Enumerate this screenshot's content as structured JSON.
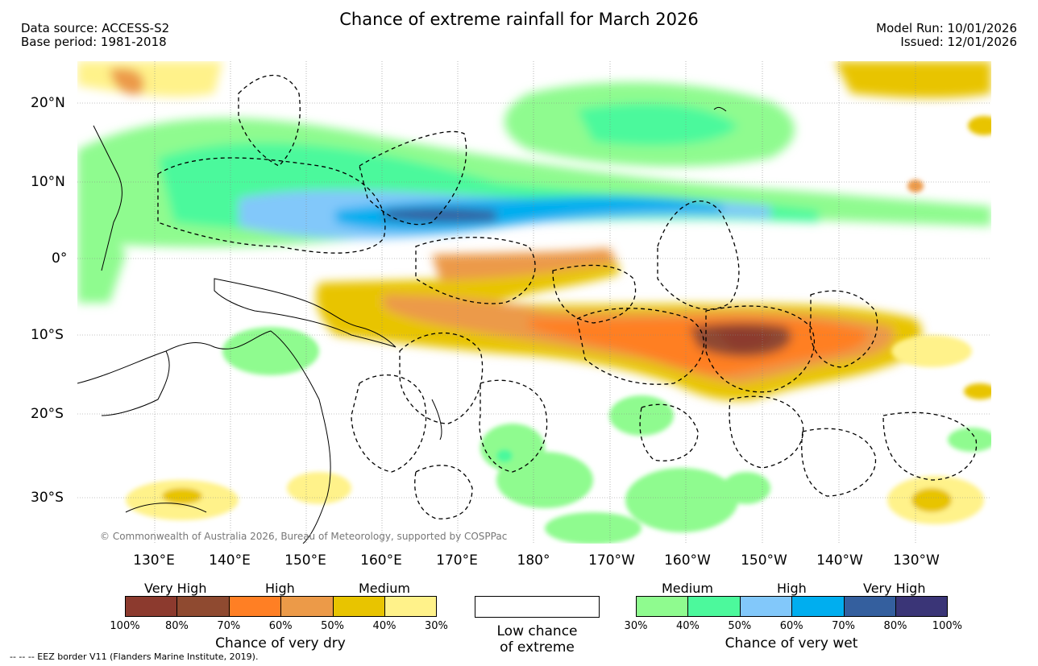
{
  "title": "Chance of extreme rainfall for March 2026",
  "source": {
    "line1": "Data source: ACCESS-S2",
    "line2": "Base period: 1981-2018"
  },
  "model": {
    "run": "Model Run: 10/01/2026",
    "issued": "Issued: 12/01/2026"
  },
  "map": {
    "lat_labels": [
      "20°N",
      "10°N",
      "0°",
      "10°S",
      "20°S",
      "30°S"
    ],
    "lon_labels": [
      "130°E",
      "140°E",
      "150°E",
      "160°E",
      "170°E",
      "180°",
      "170°W",
      "160°W",
      "150°W",
      "140°W",
      "130°W"
    ],
    "copyright": "© Commonwealth of Australia 2026, Bureau of Meteorology, supported by COSPPac"
  },
  "legend": {
    "dry": {
      "categories": [
        "Very High",
        "High",
        "Medium"
      ],
      "ticks": [
        "100%",
        "80%",
        "70%",
        "60%",
        "50%",
        "40%",
        "30%"
      ],
      "colors": [
        "#8c3a2e",
        "#8f4a30",
        "#ff7f24",
        "#ec9a48",
        "#e8c400",
        "#fff28a"
      ],
      "caption": "Chance of very dry"
    },
    "low": {
      "line1": "Low chance",
      "line2": "of extreme"
    },
    "wet": {
      "categories": [
        "Medium",
        "High",
        "Very High"
      ],
      "ticks": [
        "30%",
        "40%",
        "50%",
        "60%",
        "70%",
        "80%",
        "100%"
      ],
      "colors": [
        "#8ffb8f",
        "#4cf99c",
        "#82c8fa",
        "#00aeef",
        "#345f9e",
        "#3a3577"
      ],
      "caption": "Chance of very wet"
    }
  },
  "footnote": "-- -- -- EEZ border V11 (Flanders Marine Institute, 2019)."
}
